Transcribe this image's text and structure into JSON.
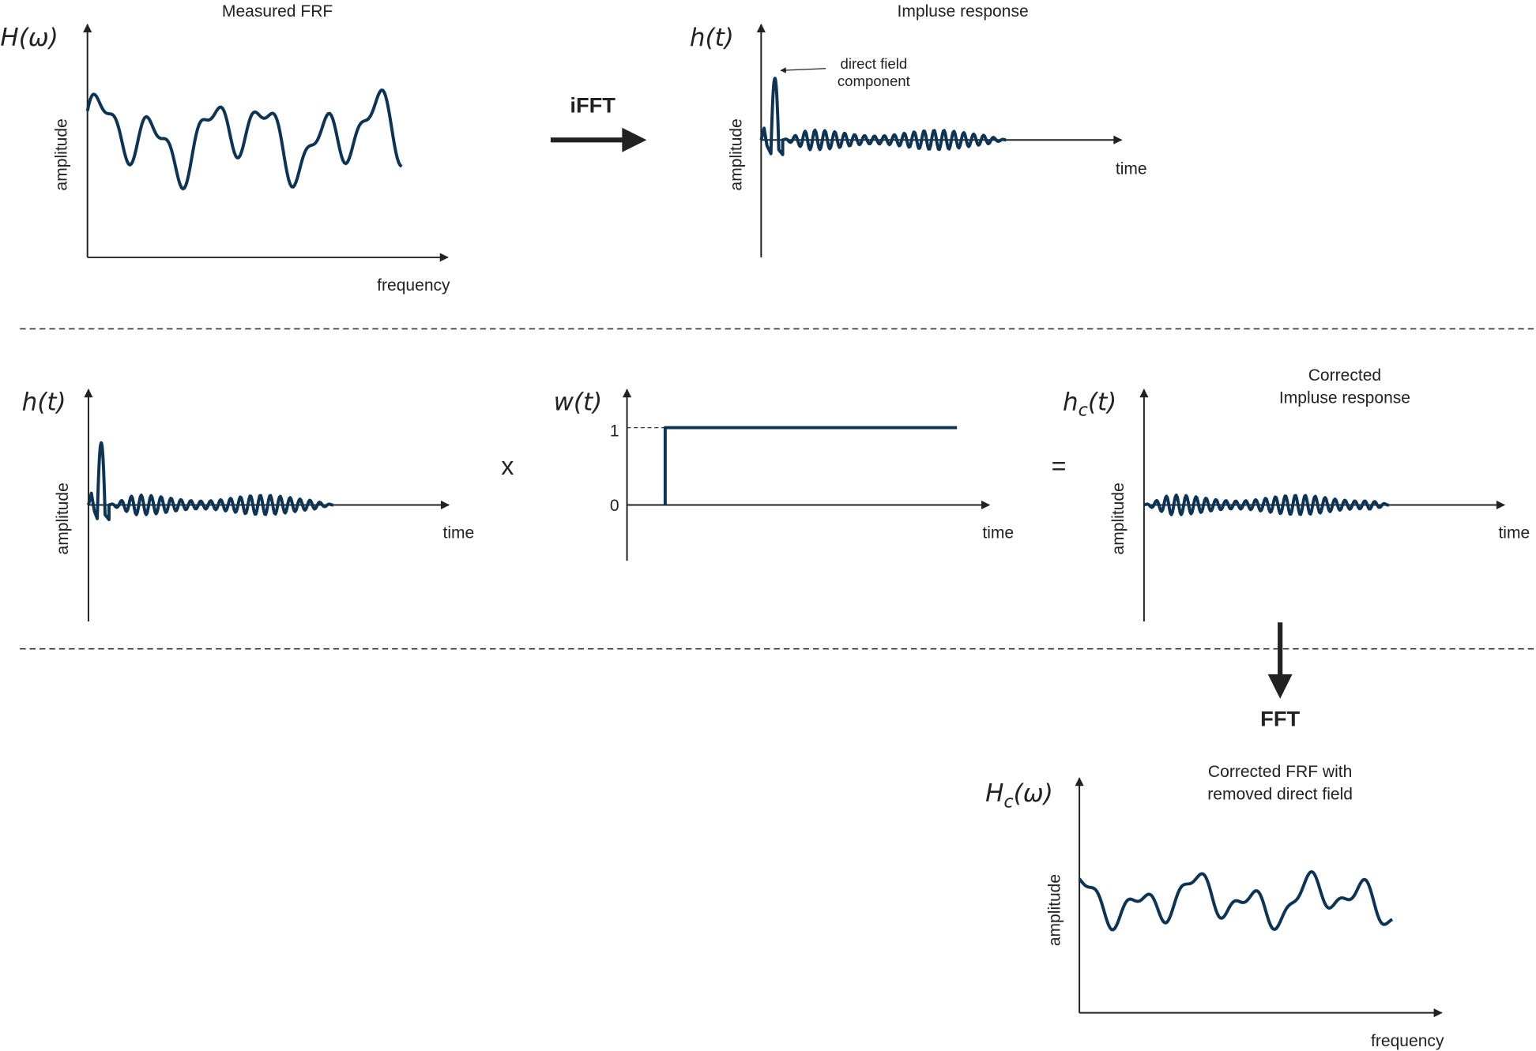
{
  "top_left": {
    "title": "Measured FRF",
    "symbol": {
      "base": "H",
      "arg": "(ω)"
    },
    "y_label": "amplitude",
    "x_label": "frequency"
  },
  "ifft": "iFFT",
  "top_right": {
    "title": "Impluse response",
    "symbol": {
      "base": "h",
      "arg": "(t)"
    },
    "y_label": "amplitude",
    "x_label": "time",
    "annotation": [
      "direct field",
      "component"
    ]
  },
  "middle_left": {
    "symbol": {
      "base": "h",
      "arg": "(t)"
    },
    "y_label": "amplitude",
    "x_label": "time"
  },
  "multiply": "x",
  "window": {
    "symbol": {
      "base": "w",
      "arg": "(t)"
    },
    "y_ticks": [
      1,
      0
    ],
    "x_label": "time"
  },
  "equals": "=",
  "middle_right": {
    "title": [
      "Corrected",
      "Impluse response"
    ],
    "symbol": {
      "base": "h",
      "sub": "c",
      "arg": "(t)"
    },
    "y_label": "amplitude",
    "x_label": "time"
  },
  "fft": "FFT",
  "bottom": {
    "title": [
      "Corrected FRF with",
      "removed direct field"
    ],
    "symbol": {
      "base": "H",
      "sub": "c",
      "arg": "(ω)"
    },
    "y_label": "amplitude",
    "x_label": "frequency"
  }
}
